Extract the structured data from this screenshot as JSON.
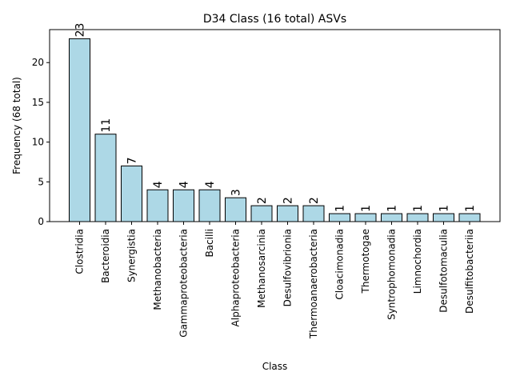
{
  "chart_data": {
    "type": "bar",
    "title": "D34 Class (16 total) ASVs",
    "xlabel": "Class",
    "ylabel": "Frequency (68 total)",
    "categories": [
      "Clostridia",
      "Bacteroidia",
      "Synergistia",
      "Methanobacteria",
      "Gammaproteobacteria",
      "Bacilli",
      "Alphaproteobacteria",
      "Methanosarcinia",
      "Desulfovibrionia",
      "Thermoanaerobacteria",
      "Cloacimonadia",
      "Thermotogae",
      "Syntrophomonadia",
      "Limnochordia",
      "Desulfotomaculia",
      "Desulfitobacteriia"
    ],
    "values": [
      23,
      11,
      7,
      4,
      4,
      4,
      3,
      2,
      2,
      2,
      1,
      1,
      1,
      1,
      1,
      1
    ],
    "data_labels": [
      "23",
      "11",
      "7",
      "4",
      "4",
      "4",
      "3",
      "2",
      "2",
      "2",
      "1",
      "1",
      "1",
      "1",
      "1",
      "1"
    ],
    "yticks": [
      0,
      5,
      10,
      15,
      20
    ],
    "ylim": [
      0,
      24.15
    ],
    "grid": false,
    "bar_color": "#add8e6",
    "edge_color": "#000000"
  }
}
